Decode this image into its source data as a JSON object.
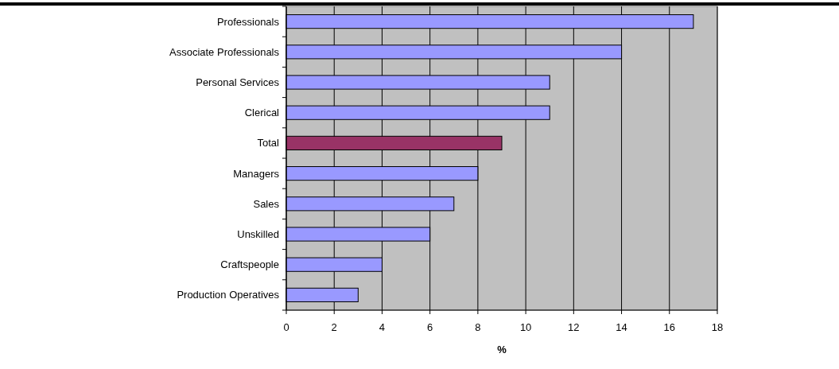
{
  "chart_data": {
    "type": "bar",
    "orientation": "horizontal",
    "xlabel": "%",
    "categories": [
      "Professionals",
      "Associate Professionals",
      "Personal Services",
      "Clerical",
      "Total",
      "Managers",
      "Sales",
      "Unskilled",
      "Craftspeople",
      "Production Operatives"
    ],
    "values": [
      17,
      14,
      11,
      11,
      9,
      8,
      7,
      6,
      4,
      3
    ],
    "colors": [
      "#9999ff",
      "#9999ff",
      "#9999ff",
      "#9999ff",
      "#993366",
      "#9999ff",
      "#9999ff",
      "#9999ff",
      "#9999ff",
      "#9999ff"
    ],
    "xlim": [
      0,
      18
    ],
    "xticks": [
      0,
      2,
      4,
      6,
      8,
      10,
      12,
      14,
      16,
      18
    ],
    "grid": "x"
  }
}
